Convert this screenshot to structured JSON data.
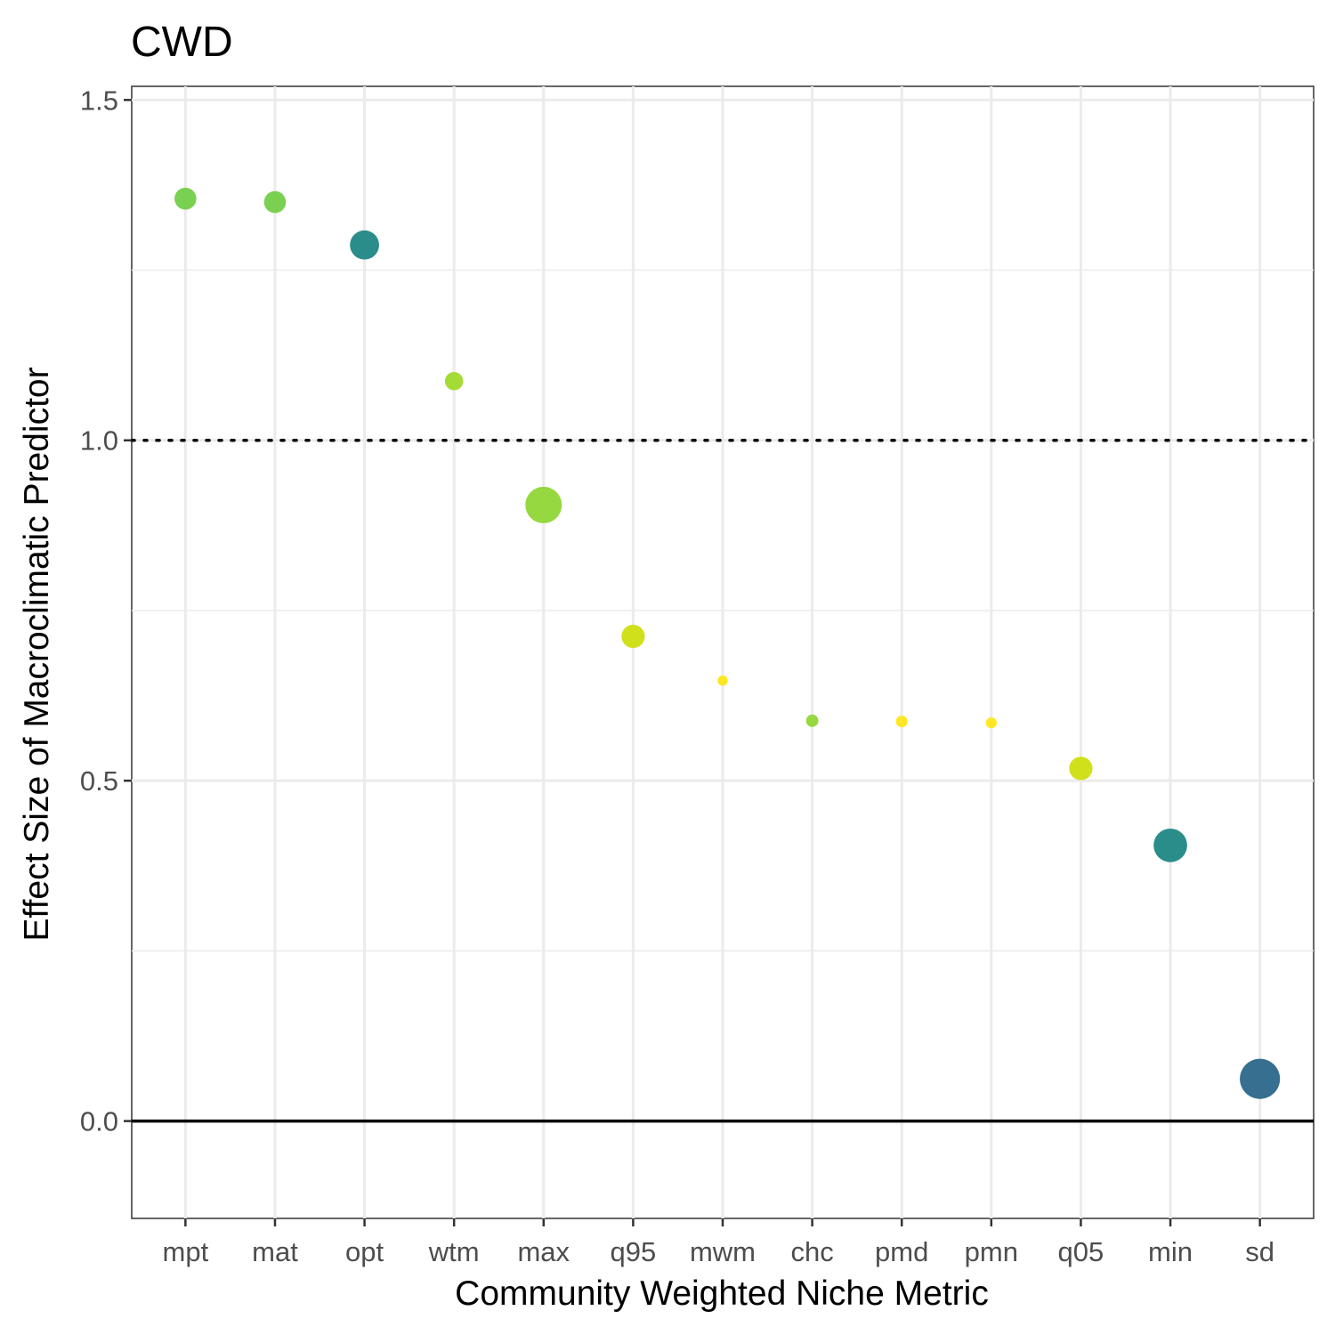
{
  "chart_data": {
    "type": "scatter",
    "title": "CWD",
    "xlabel": "Community Weighted Niche Metric",
    "ylabel": "Effect Size of Macroclimatic Predictor",
    "categories": [
      "mpt",
      "mat",
      "opt",
      "wtm",
      "max",
      "q95",
      "mwm",
      "chc",
      "pmd",
      "pmn",
      "q05",
      "min",
      "sd"
    ],
    "values": [
      1.355,
      1.35,
      1.287,
      1.087,
      0.905,
      0.712,
      0.647,
      0.588,
      0.587,
      0.585,
      0.518,
      0.405,
      0.062
    ],
    "point_sizes": [
      3.0,
      3.0,
      4.0,
      2.5,
      5.0,
      3.2,
      1.4,
      1.7,
      1.6,
      1.5,
      3.2,
      4.6,
      5.5
    ],
    "point_colors": [
      "#7ad151",
      "#7ad151",
      "#2a8d89",
      "#a5db36",
      "#95d840",
      "#d0e11c",
      "#fde725",
      "#95d840",
      "#fde725",
      "#fde725",
      "#d0e11c",
      "#2a8d89",
      "#366f8f"
    ],
    "yticks": [
      "0.0",
      "0.5",
      "1.0",
      "1.5"
    ],
    "ylim": [
      -0.143,
      1.52
    ],
    "reference_lines": [
      {
        "y": 0.0,
        "style": "solid",
        "color": "#000000"
      },
      {
        "y": 1.0,
        "style": "dotted",
        "color": "#000000"
      }
    ],
    "grid": true,
    "legend": "none"
  }
}
